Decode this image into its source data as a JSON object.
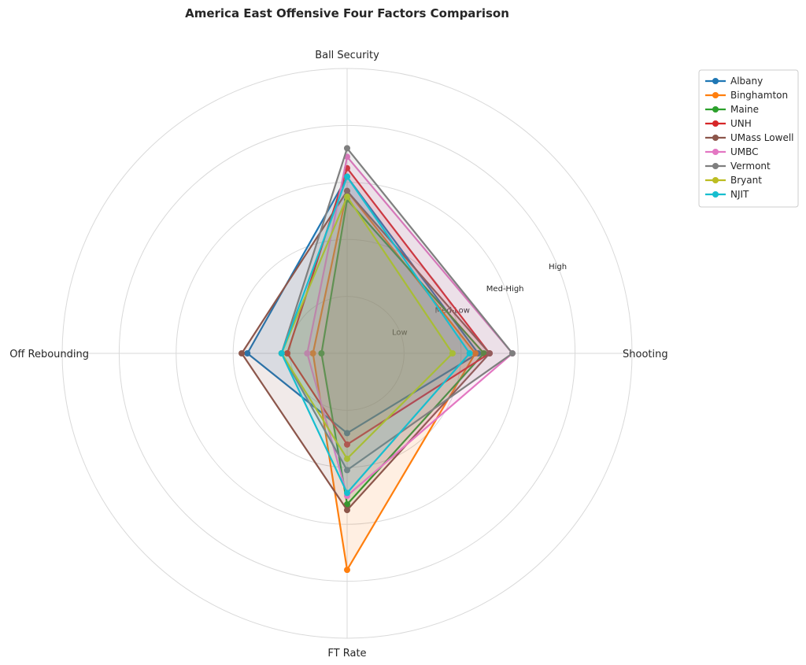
{
  "chart_data": {
    "type": "radar",
    "title": "America East Offensive Four Factors Comparison",
    "axes": [
      "Shooting",
      "Ball Security",
      "Off Rebounding",
      "FT Rate"
    ],
    "ring_labels": [
      "Low",
      "Med-Low",
      "Med-High",
      "High"
    ],
    "range": [
      0,
      1
    ],
    "grid": true,
    "legend_position": "top-right, outside plot",
    "series": [
      {
        "name": "Albany",
        "color": "#1f77b4",
        "values": [
          0.46,
          0.62,
          0.35,
          0.28
        ]
      },
      {
        "name": "Binghamton",
        "color": "#ff7f0e",
        "values": [
          0.45,
          0.57,
          0.12,
          0.76
        ]
      },
      {
        "name": "Maine",
        "color": "#2ca02c",
        "values": [
          0.48,
          0.54,
          0.09,
          0.53
        ]
      },
      {
        "name": "UNH",
        "color": "#d62728",
        "values": [
          0.5,
          0.65,
          0.21,
          0.32
        ]
      },
      {
        "name": "UMass Lowell",
        "color": "#8c564b",
        "values": [
          0.5,
          0.57,
          0.37,
          0.55
        ]
      },
      {
        "name": "UMBC",
        "color": "#e377c2",
        "values": [
          0.58,
          0.69,
          0.14,
          0.5
        ]
      },
      {
        "name": "Vermont",
        "color": "#7f7f7f",
        "values": [
          0.58,
          0.72,
          0.23,
          0.41
        ]
      },
      {
        "name": "Bryant",
        "color": "#bcbd22",
        "values": [
          0.37,
          0.55,
          0.23,
          0.37
        ]
      },
      {
        "name": "NJIT",
        "color": "#17becf",
        "values": [
          0.43,
          0.62,
          0.23,
          0.49
        ]
      }
    ]
  }
}
